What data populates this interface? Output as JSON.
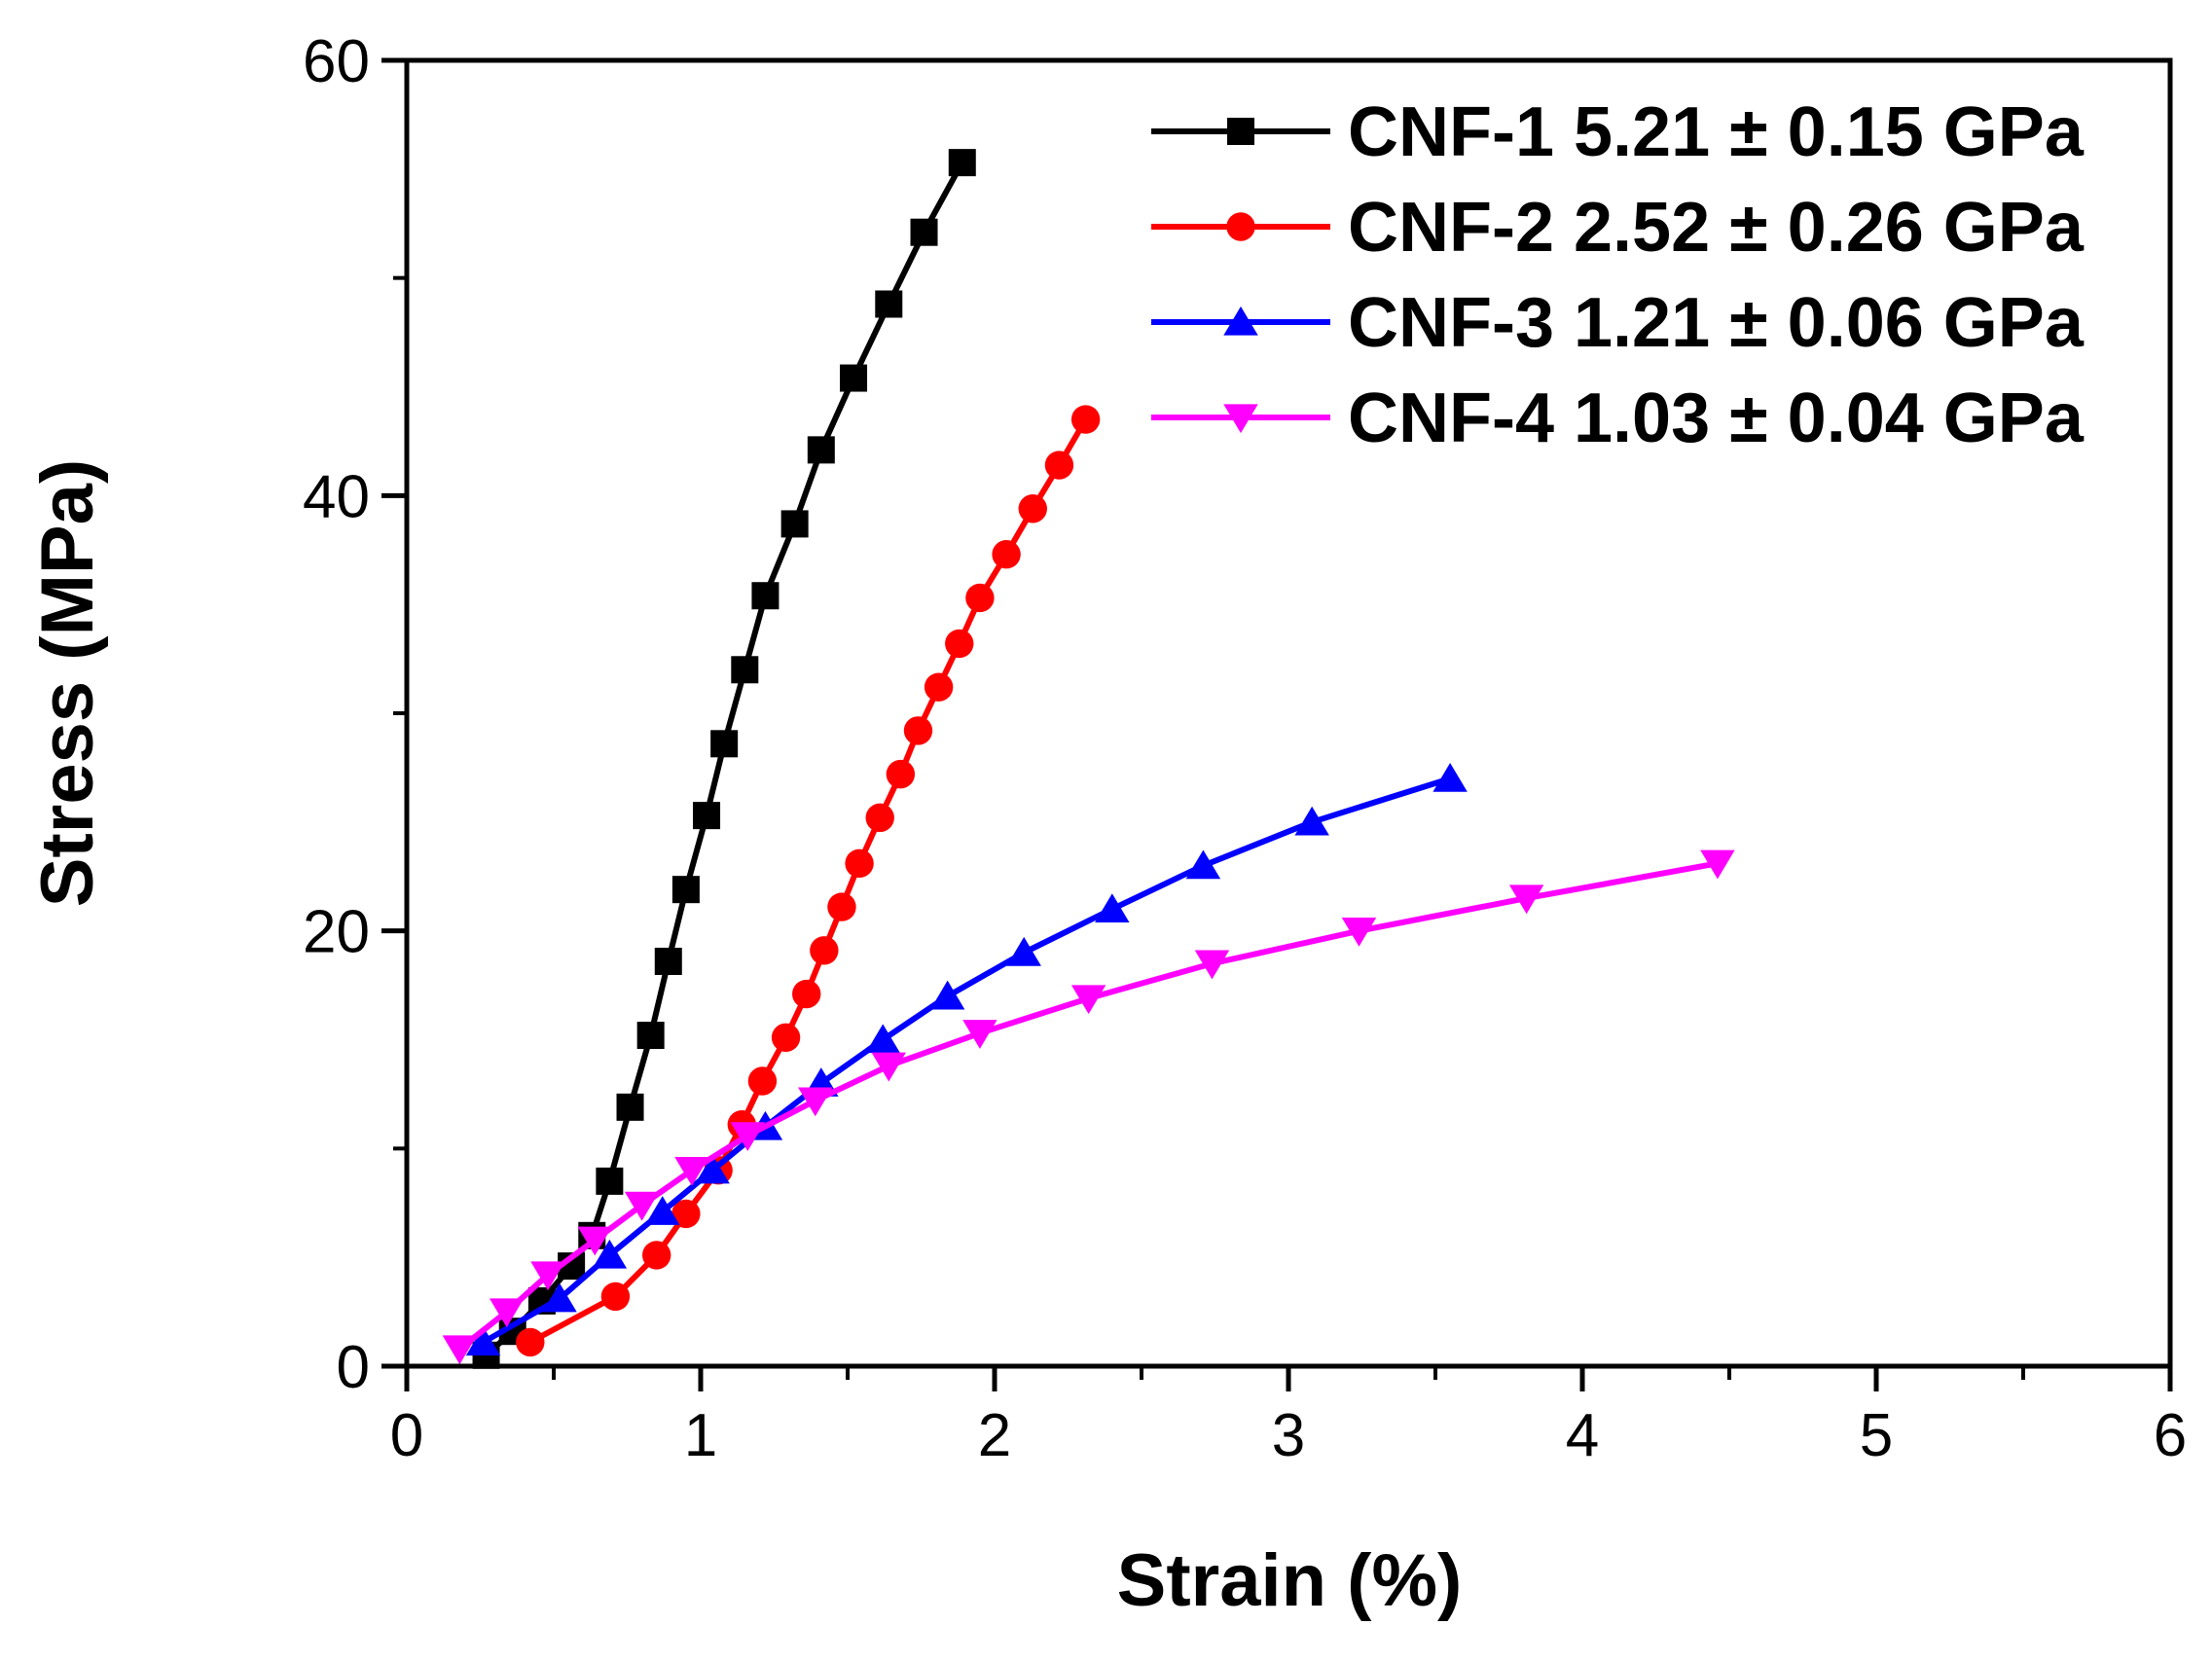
{
  "chart_data": {
    "type": "line",
    "title": "",
    "xlabel": "Strain (%)",
    "ylabel": "Stress (MPa)",
    "xlim": [
      0,
      6
    ],
    "ylim": [
      0,
      60
    ],
    "xticks": [
      0,
      1,
      2,
      3,
      4,
      5,
      6
    ],
    "yticks": [
      0,
      20,
      40,
      60
    ],
    "x_minor_step": 0.5,
    "y_minor_step": 10,
    "grid": false,
    "legend_position": "top-right",
    "series": [
      {
        "name": "CNF-1 5.21 ± 0.15 GPa",
        "color": "#000000",
        "marker": "square",
        "x": [
          0.27,
          0.36,
          0.46,
          0.56,
          0.63,
          0.69,
          0.76,
          0.83,
          0.89,
          0.95,
          1.02,
          1.08,
          1.15,
          1.22,
          1.32,
          1.41,
          1.52,
          1.64,
          1.76,
          1.89
        ],
        "y": [
          0.5,
          1.6,
          3.0,
          4.6,
          6.0,
          8.5,
          11.9,
          15.2,
          18.6,
          21.9,
          25.3,
          28.6,
          32.0,
          35.4,
          38.7,
          42.1,
          45.4,
          48.8,
          52.1,
          55.3
        ]
      },
      {
        "name": "CNF-2 2.52 ± 0.26 GPa",
        "color": "#ff0000",
        "marker": "circle",
        "x": [
          0.42,
          0.71,
          0.85,
          0.95,
          1.06,
          1.14,
          1.21,
          1.29,
          1.36,
          1.42,
          1.48,
          1.54,
          1.61,
          1.68,
          1.74,
          1.81,
          1.88,
          1.95,
          2.04,
          2.13,
          2.22,
          2.31
        ],
        "y": [
          1.1,
          3.2,
          5.1,
          7.0,
          9.0,
          11.1,
          13.1,
          15.1,
          17.1,
          19.1,
          21.1,
          23.1,
          25.2,
          27.2,
          29.2,
          31.2,
          33.2,
          35.3,
          37.3,
          39.4,
          41.4,
          43.5
        ]
      },
      {
        "name": "CNF-3 1.21 ± 0.06 GPa",
        "color": "#0000ff",
        "marker": "triangle-up",
        "x": [
          0.26,
          0.52,
          0.69,
          0.87,
          1.04,
          1.22,
          1.41,
          1.62,
          1.84,
          2.1,
          2.4,
          2.71,
          3.08,
          3.55
        ],
        "y": [
          1.1,
          3.1,
          5.1,
          7.1,
          9.0,
          11.0,
          13.0,
          15.0,
          17.0,
          19.0,
          21.0,
          23.0,
          25.0,
          27.0
        ]
      },
      {
        "name": "CNF-4 1.03 ± 0.04 GPa",
        "color": "#ff00ff",
        "marker": "triangle-down",
        "x": [
          0.18,
          0.34,
          0.48,
          0.64,
          0.8,
          0.97,
          1.16,
          1.39,
          1.64,
          1.95,
          2.32,
          2.74,
          3.24,
          3.81,
          4.46
        ],
        "y": [
          0.8,
          2.5,
          4.2,
          5.8,
          7.4,
          9.0,
          10.6,
          12.2,
          13.8,
          15.3,
          16.9,
          18.5,
          20.0,
          21.5,
          23.1
        ]
      }
    ]
  }
}
